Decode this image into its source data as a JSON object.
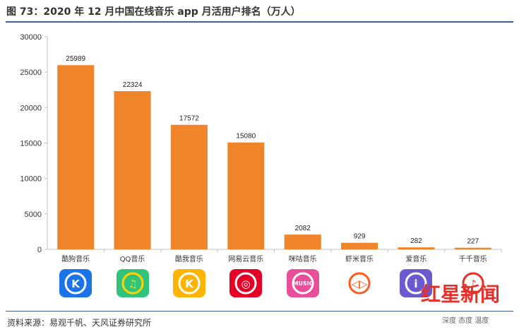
{
  "header": {
    "title": "图 73：2020 年 12 月中国在线音乐 app 月活用户排名（万人）"
  },
  "footer": {
    "source": "资料来源：易观千帆、天风证券研究所"
  },
  "watermark": {
    "main": "红星新闻",
    "sub": "深度 态度 温度"
  },
  "chart_data": {
    "type": "bar",
    "title": "2020 年 12 月中国在线音乐 app 月活用户排名（万人）",
    "categories": [
      "酷狗音乐",
      "QQ音乐",
      "酷我音乐",
      "网易云音乐",
      "咪咕音乐",
      "虾米音乐",
      "爱音乐",
      "千千音乐"
    ],
    "values": [
      25989,
      22324,
      17572,
      15080,
      2082,
      929,
      282,
      227
    ],
    "ylim": [
      0,
      30000
    ],
    "yticks": [
      0,
      5000,
      10000,
      15000,
      20000,
      25000,
      30000
    ],
    "xlabel": "",
    "ylabel": "",
    "bar_color": "#f0842a",
    "grid": false,
    "legend": "none"
  },
  "icons": [
    {
      "name": "kugou-icon",
      "bg": "#1a73e8",
      "fg": "#ffffff",
      "glyph": "K"
    },
    {
      "name": "qq-music-icon",
      "bg": "#31c27c",
      "fg": "#ffd400",
      "glyph": "♫"
    },
    {
      "name": "kuwo-icon",
      "bg": "#ffb400",
      "fg": "#ffffff",
      "glyph": "K"
    },
    {
      "name": "netease-icon",
      "bg": "#e60026",
      "fg": "#ffffff",
      "glyph": "◎"
    },
    {
      "name": "migu-icon",
      "bg": "#e94e9b",
      "fg": "#ffffff",
      "glyph": "MUSIC"
    },
    {
      "name": "xiami-icon",
      "bg": "#ffffff",
      "fg": "#ff5a1f",
      "glyph": "◁▷"
    },
    {
      "name": "imusic-icon",
      "bg": "#6a5acd",
      "fg": "#ffffff",
      "glyph": "i"
    },
    {
      "name": "qianqian-icon",
      "bg": "#ffffff",
      "fg": "#e8302a",
      "glyph": "♪"
    }
  ]
}
